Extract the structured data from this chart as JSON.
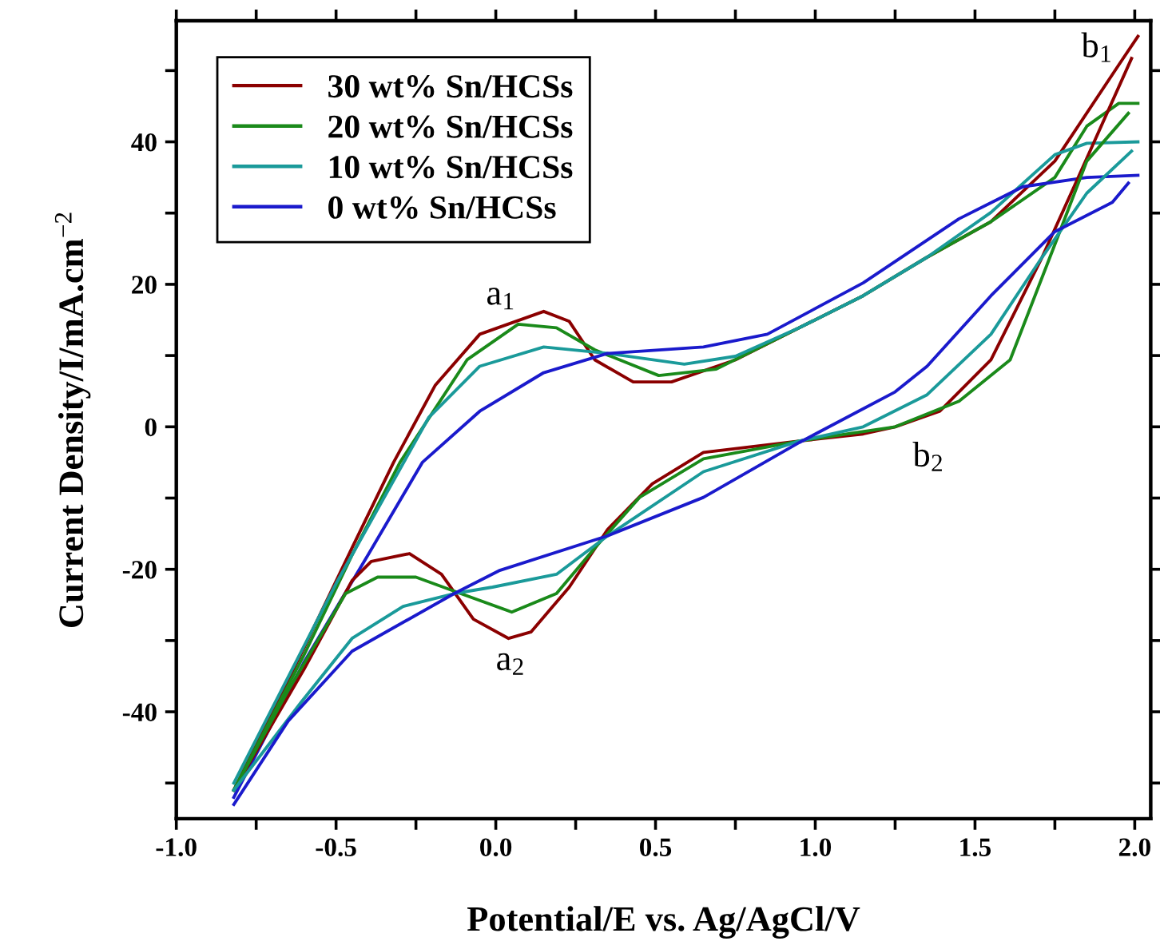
{
  "chart_data": {
    "type": "line",
    "xlabel": "Potential/E vs. Ag/AgCl/V",
    "ylabel": "Current Density/I/mA.cm$^{−2}$",
    "xlim": [
      -1.0,
      2.05
    ],
    "ylim": [
      -55,
      57
    ],
    "xticks": [
      {
        "value": -1.0,
        "label": "-1.0"
      },
      {
        "value": -0.75,
        "label": null
      },
      {
        "value": -0.5,
        "label": "-0.5"
      },
      {
        "value": -0.25,
        "label": null
      },
      {
        "value": 0.0,
        "label": "0.0"
      },
      {
        "value": 0.25,
        "label": null
      },
      {
        "value": 0.5,
        "label": "0.5"
      },
      {
        "value": 0.75,
        "label": null
      },
      {
        "value": 1.0,
        "label": "1.0"
      },
      {
        "value": 1.25,
        "label": null
      },
      {
        "value": 1.5,
        "label": "1.5"
      },
      {
        "value": 1.75,
        "label": null
      },
      {
        "value": 2.0,
        "label": "2.0"
      }
    ],
    "yticks": [
      {
        "value": -50,
        "label": null
      },
      -40,
      {
        "value": -30,
        "label": null
      },
      -20,
      {
        "value": -10,
        "label": null
      },
      0,
      {
        "value": 10,
        "label": null
      },
      20,
      {
        "value": 30,
        "label": null
      },
      40,
      {
        "value": 50,
        "label": null
      }
    ],
    "grid": false,
    "legend": "top left",
    "line_style": "solid",
    "annotations": [
      "a$_{1}$",
      "a$_{2}$",
      "b$_{1}$",
      "b$_{2}$"
    ],
    "series": [
      {
        "name": "30 wt% Sn/HCSs",
        "color": "#8b0000",
        "x": [
          -0.82,
          -0.6,
          -0.45,
          -0.32,
          -0.19,
          -0.05,
          0.15,
          0.23,
          0.31,
          0.43,
          0.55,
          0.75,
          0.95,
          1.15,
          1.35,
          1.55,
          1.75,
          1.95,
          2.01
        ],
        "values": [
          -51,
          -31,
          -17,
          -5,
          5.8,
          13,
          16.2,
          14.8,
          9.4,
          6.3,
          6.3,
          9.4,
          13.9,
          18.4,
          23.8,
          28.8,
          37.3,
          50.8,
          54.8
        ]
      },
      {
        "name": "20 wt% Sn/HCSs",
        "color": "#1a8a1a",
        "x": [
          -0.82,
          -0.6,
          -0.45,
          -0.3,
          -0.09,
          0.07,
          0.19,
          0.31,
          0.51,
          0.69,
          0.95,
          1.15,
          1.35,
          1.55,
          1.75,
          1.85,
          1.95,
          2.01
        ],
        "values": [
          -51,
          -32,
          -18,
          -5,
          9.4,
          14.4,
          13.9,
          10.8,
          7.2,
          8.1,
          13.9,
          18.4,
          23.8,
          28.8,
          35,
          42.2,
          45.4,
          45.4
        ]
      },
      {
        "name": "10 wt% Sn/HCSs",
        "color": "#1a9a9a",
        "x": [
          -0.82,
          -0.5,
          -0.21,
          -0.05,
          0.15,
          0.35,
          0.59,
          0.75,
          0.95,
          1.15,
          1.35,
          1.55,
          1.75,
          1.85,
          2.01
        ],
        "values": [
          -50,
          -22,
          1.3,
          8.5,
          11.2,
          10.3,
          8.8,
          9.9,
          13.9,
          18.4,
          23.8,
          30.1,
          38.2,
          39.8,
          40
        ]
      },
      {
        "name": "0 wt% Sn/HCSs",
        "color": "#1a1acc",
        "x": [
          -0.82,
          -0.6,
          -0.4,
          -0.23,
          -0.05,
          0.15,
          0.35,
          0.65,
          0.85,
          1.15,
          1.45,
          1.65,
          1.85,
          2.01
        ],
        "values": [
          -52,
          -33,
          -18,
          -5,
          2.2,
          7.6,
          10.3,
          11.2,
          13,
          20.2,
          29.2,
          33.7,
          35,
          35.3
        ]
      },
      {
        "color": "#8b0000",
        "x": [
          -0.82,
          -0.6,
          -0.45,
          -0.39,
          -0.27,
          -0.17,
          -0.07,
          0.04,
          0.11,
          0.23,
          0.35,
          0.49,
          0.65,
          0.95,
          1.15,
          1.25,
          1.39,
          1.55,
          1.71,
          1.81,
          1.99
        ],
        "values": [
          -51,
          -34,
          -21.6,
          -18.9,
          -17.8,
          -20.7,
          -27,
          -29.7,
          -28.8,
          -22.5,
          -14.4,
          -8,
          -3.6,
          -2,
          -1,
          0,
          2.2,
          9.4,
          23.8,
          33.7,
          51.7
        ]
      },
      {
        "color": "#1a8a1a",
        "x": [
          -0.82,
          -0.65,
          -0.47,
          -0.37,
          -0.25,
          -0.11,
          0.05,
          0.19,
          0.31,
          0.45,
          0.65,
          0.95,
          1.25,
          1.45,
          1.61,
          1.75,
          1.85,
          1.98
        ],
        "values": [
          -51,
          -37,
          -23.4,
          -21.1,
          -21.1,
          -23.4,
          -26,
          -23.4,
          -17,
          -9.9,
          -4.5,
          -2,
          0,
          3.6,
          9.4,
          25.6,
          37.3,
          44
        ]
      },
      {
        "color": "#1a9a9a",
        "x": [
          -0.82,
          -0.61,
          -0.45,
          -0.29,
          -0.13,
          -0.01,
          0.19,
          0.35,
          0.65,
          0.95,
          1.15,
          1.35,
          1.55,
          1.71,
          1.85,
          1.99
        ],
        "values": [
          -51,
          -38.7,
          -29.7,
          -25.2,
          -23.4,
          -22.5,
          -20.7,
          -15.3,
          -6.3,
          -2,
          0,
          4.5,
          13,
          23.8,
          32.8,
          38.7
        ]
      },
      {
        "color": "#1a1acc",
        "x": [
          -0.82,
          -0.65,
          -0.45,
          -0.13,
          0.01,
          0.35,
          0.65,
          0.95,
          1.25,
          1.35,
          1.55,
          1.75,
          1.93,
          1.98
        ],
        "values": [
          -53,
          -41.3,
          -31.5,
          -23.4,
          -20.2,
          -15.3,
          -9.9,
          -2.2,
          4.9,
          8.5,
          18.4,
          27.4,
          31.5,
          34.2
        ]
      }
    ]
  }
}
